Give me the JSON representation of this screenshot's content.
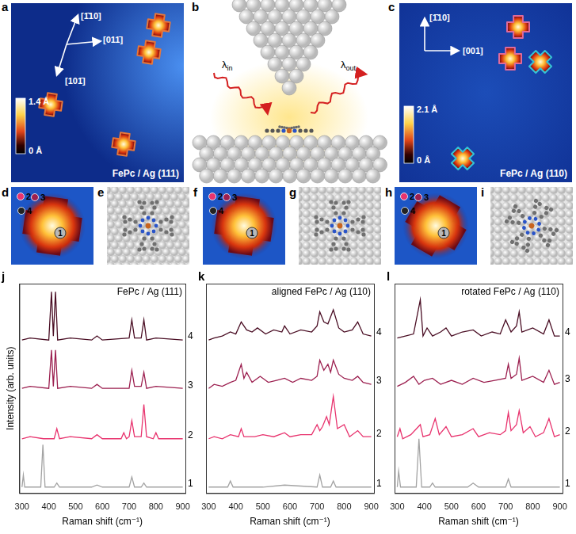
{
  "panels": {
    "a": {
      "letter": "a",
      "directions": [
        "[1̄10]",
        "[011̄]",
        "[101̄]"
      ],
      "colorbar": [
        {
          "value": 1.4,
          "label": "1.4 Å"
        },
        {
          "value": 0,
          "label": "0 Å"
        }
      ],
      "caption": "FePc / Ag (111)"
    },
    "b": {
      "letter": "b",
      "beams": [
        {
          "symbol": "λ",
          "subscript": "in"
        },
        {
          "symbol": "λ",
          "subscript": "out"
        }
      ]
    },
    "c": {
      "letter": "c",
      "directions": [
        "[1̄10]",
        "[001]"
      ],
      "colorbar": [
        {
          "value": 2.1,
          "label": "2.1 Å"
        },
        {
          "value": 0,
          "label": "0 Å"
        }
      ],
      "caption": "FePc / Ag (110)"
    },
    "d": {
      "letter": "d",
      "points": [
        "1",
        "2",
        "3",
        "4"
      ]
    },
    "e": {
      "letter": "e"
    },
    "f": {
      "letter": "f",
      "points": [
        "1",
        "2",
        "3",
        "4"
      ]
    },
    "g": {
      "letter": "g"
    },
    "h": {
      "letter": "h",
      "points": [
        "1",
        "2",
        "3",
        "4"
      ]
    },
    "i": {
      "letter": "i"
    }
  },
  "chart_data": [
    {
      "type": "line",
      "panel_label": "j",
      "title": "FePc / Ag (111)",
      "x_label": "Raman shift (cm⁻¹)",
      "y_label": "Intensity (arb. units)",
      "xlim": [
        290,
        910
      ],
      "xticks": [
        300,
        400,
        500,
        600,
        700,
        800,
        900
      ],
      "ylim": [
        0,
        104
      ],
      "tick_labels": "x",
      "grid": false,
      "legend": false,
      "series": [
        {
          "name": "1",
          "color": "#a3a3a3",
          "x": [
            300,
            305,
            310,
            330,
            370,
            378,
            386,
            420,
            430,
            440,
            560,
            580,
            600,
            700,
            710,
            720,
            745,
            755,
            765,
            900
          ],
          "values": [
            3,
            9,
            3,
            3,
            3,
            24,
            3,
            3,
            5,
            3,
            3,
            4,
            3,
            3,
            8,
            3,
            3,
            5,
            3,
            3
          ]
        },
        {
          "name": "2",
          "color": "#e8336e",
          "x": [
            300,
            330,
            380,
            420,
            430,
            440,
            480,
            560,
            580,
            600,
            670,
            680,
            690,
            700,
            710,
            720,
            745,
            755,
            765,
            790,
            800,
            810,
            900
          ],
          "values": [
            27,
            28,
            27,
            27,
            32,
            27,
            28,
            27,
            29,
            27,
            27,
            30,
            27,
            28,
            36,
            28,
            28,
            44,
            28,
            27,
            30,
            27,
            27
          ]
        },
        {
          "name": "3",
          "color": "#9c2050",
          "x": [
            300,
            330,
            400,
            410,
            417,
            425,
            433,
            480,
            560,
            580,
            600,
            700,
            710,
            720,
            745,
            755,
            765,
            800,
            900
          ],
          "values": [
            52,
            53,
            52,
            71,
            53,
            71,
            52,
            53,
            52,
            54,
            52,
            52,
            61,
            53,
            53,
            60,
            52,
            53,
            52
          ]
        },
        {
          "name": "4",
          "color": "#4a0e24",
          "x": [
            300,
            330,
            400,
            410,
            417,
            425,
            433,
            480,
            560,
            580,
            600,
            700,
            710,
            720,
            745,
            755,
            765,
            800,
            900
          ],
          "values": [
            76,
            77,
            76,
            100,
            78,
            100,
            76,
            77,
            76,
            78,
            76,
            77,
            86,
            77,
            77,
            86,
            76,
            77,
            76
          ]
        }
      ]
    },
    {
      "type": "line",
      "panel_label": "k",
      "title": "aligned FePc / Ag (110)",
      "x_label": "Raman shift (cm⁻¹)",
      "xlim": [
        290,
        910
      ],
      "xticks": [
        300,
        400,
        500,
        600,
        700,
        800,
        900
      ],
      "ylim": [
        0,
        104
      ],
      "tick_labels": "x",
      "grid": false,
      "legend": false,
      "series": [
        {
          "name": "1",
          "color": "#a3a3a3",
          "x": [
            300,
            330,
            370,
            380,
            390,
            500,
            580,
            700,
            710,
            720,
            750,
            760,
            770,
            900
          ],
          "values": [
            3,
            3,
            3,
            6,
            3,
            3,
            4,
            3,
            9,
            3,
            3,
            6,
            3,
            3
          ]
        },
        {
          "name": "2",
          "color": "#e8336e",
          "x": [
            300,
            320,
            350,
            380,
            410,
            420,
            430,
            470,
            500,
            540,
            580,
            600,
            640,
            680,
            700,
            710,
            720,
            735,
            745,
            760,
            775,
            800,
            820,
            850,
            870,
            900
          ],
          "values": [
            27,
            28,
            27,
            29,
            28,
            32,
            28,
            28,
            29,
            28,
            30,
            28,
            29,
            29,
            34,
            31,
            33,
            38,
            34,
            48,
            32,
            34,
            28,
            31,
            28,
            28
          ]
        },
        {
          "name": "3",
          "color": "#9c2050",
          "x": [
            300,
            320,
            350,
            380,
            400,
            420,
            430,
            440,
            460,
            490,
            520,
            550,
            580,
            610,
            640,
            680,
            700,
            710,
            725,
            740,
            750,
            760,
            780,
            800,
            830,
            850,
            870,
            900
          ],
          "values": [
            52,
            54,
            53,
            55,
            56,
            64,
            57,
            60,
            55,
            58,
            55,
            56,
            57,
            55,
            57,
            56,
            58,
            66,
            61,
            64,
            60,
            66,
            59,
            57,
            56,
            58,
            55,
            54
          ]
        },
        {
          "name": "4",
          "color": "#4a0e24",
          "x": [
            300,
            320,
            350,
            380,
            400,
            420,
            440,
            460,
            480,
            510,
            540,
            570,
            580,
            600,
            640,
            680,
            700,
            710,
            725,
            740,
            760,
            780,
            800,
            830,
            850,
            870,
            900
          ],
          "values": [
            76,
            77,
            78,
            80,
            79,
            85,
            81,
            80,
            82,
            79,
            81,
            80,
            83,
            79,
            81,
            80,
            83,
            90,
            85,
            84,
            91,
            82,
            80,
            81,
            85,
            79,
            78
          ]
        }
      ]
    },
    {
      "type": "line",
      "panel_label": "l",
      "title": "rotated FePc / Ag (110)",
      "x_label": "Raman shift (cm⁻¹)",
      "xlim": [
        290,
        910
      ],
      "xticks": [
        300,
        400,
        500,
        600,
        700,
        800,
        900
      ],
      "ylim": [
        0,
        104
      ],
      "tick_labels": "x",
      "grid": false,
      "legend": false,
      "series": [
        {
          "name": "1",
          "color": "#a3a3a3",
          "x": [
            300,
            305,
            312,
            370,
            380,
            390,
            420,
            430,
            440,
            560,
            580,
            600,
            700,
            710,
            720,
            900
          ],
          "values": [
            3,
            11,
            3,
            3,
            27,
            3,
            3,
            5,
            3,
            3,
            5,
            3,
            3,
            7,
            3,
            3
          ]
        },
        {
          "name": "2",
          "color": "#e8336e",
          "x": [
            300,
            310,
            320,
            350,
            385,
            395,
            420,
            440,
            455,
            480,
            500,
            540,
            580,
            600,
            640,
            680,
            700,
            710,
            720,
            740,
            750,
            765,
            790,
            810,
            840,
            860,
            880,
            900
          ],
          "values": [
            28,
            32,
            27,
            29,
            34,
            28,
            29,
            37,
            29,
            33,
            28,
            29,
            32,
            28,
            30,
            29,
            31,
            40,
            31,
            34,
            41,
            30,
            33,
            28,
            30,
            37,
            28,
            29
          ]
        },
        {
          "name": "3",
          "color": "#9c2050",
          "x": [
            300,
            330,
            360,
            380,
            400,
            430,
            460,
            500,
            540,
            580,
            620,
            660,
            700,
            710,
            720,
            740,
            750,
            760,
            800,
            840,
            860,
            880,
            900
          ],
          "values": [
            53,
            55,
            58,
            54,
            56,
            57,
            54,
            56,
            54,
            57,
            55,
            56,
            57,
            64,
            57,
            59,
            67,
            56,
            58,
            55,
            61,
            54,
            55
          ]
        },
        {
          "name": "4",
          "color": "#4a0e24",
          "x": [
            300,
            330,
            360,
            385,
            395,
            410,
            430,
            460,
            480,
            500,
            540,
            580,
            610,
            650,
            680,
            700,
            720,
            740,
            750,
            760,
            800,
            840,
            860,
            880,
            900
          ],
          "values": [
            77,
            78,
            79,
            96,
            78,
            82,
            78,
            80,
            82,
            78,
            80,
            81,
            78,
            80,
            79,
            86,
            80,
            83,
            90,
            80,
            82,
            79,
            86,
            78,
            78
          ]
        }
      ]
    }
  ]
}
